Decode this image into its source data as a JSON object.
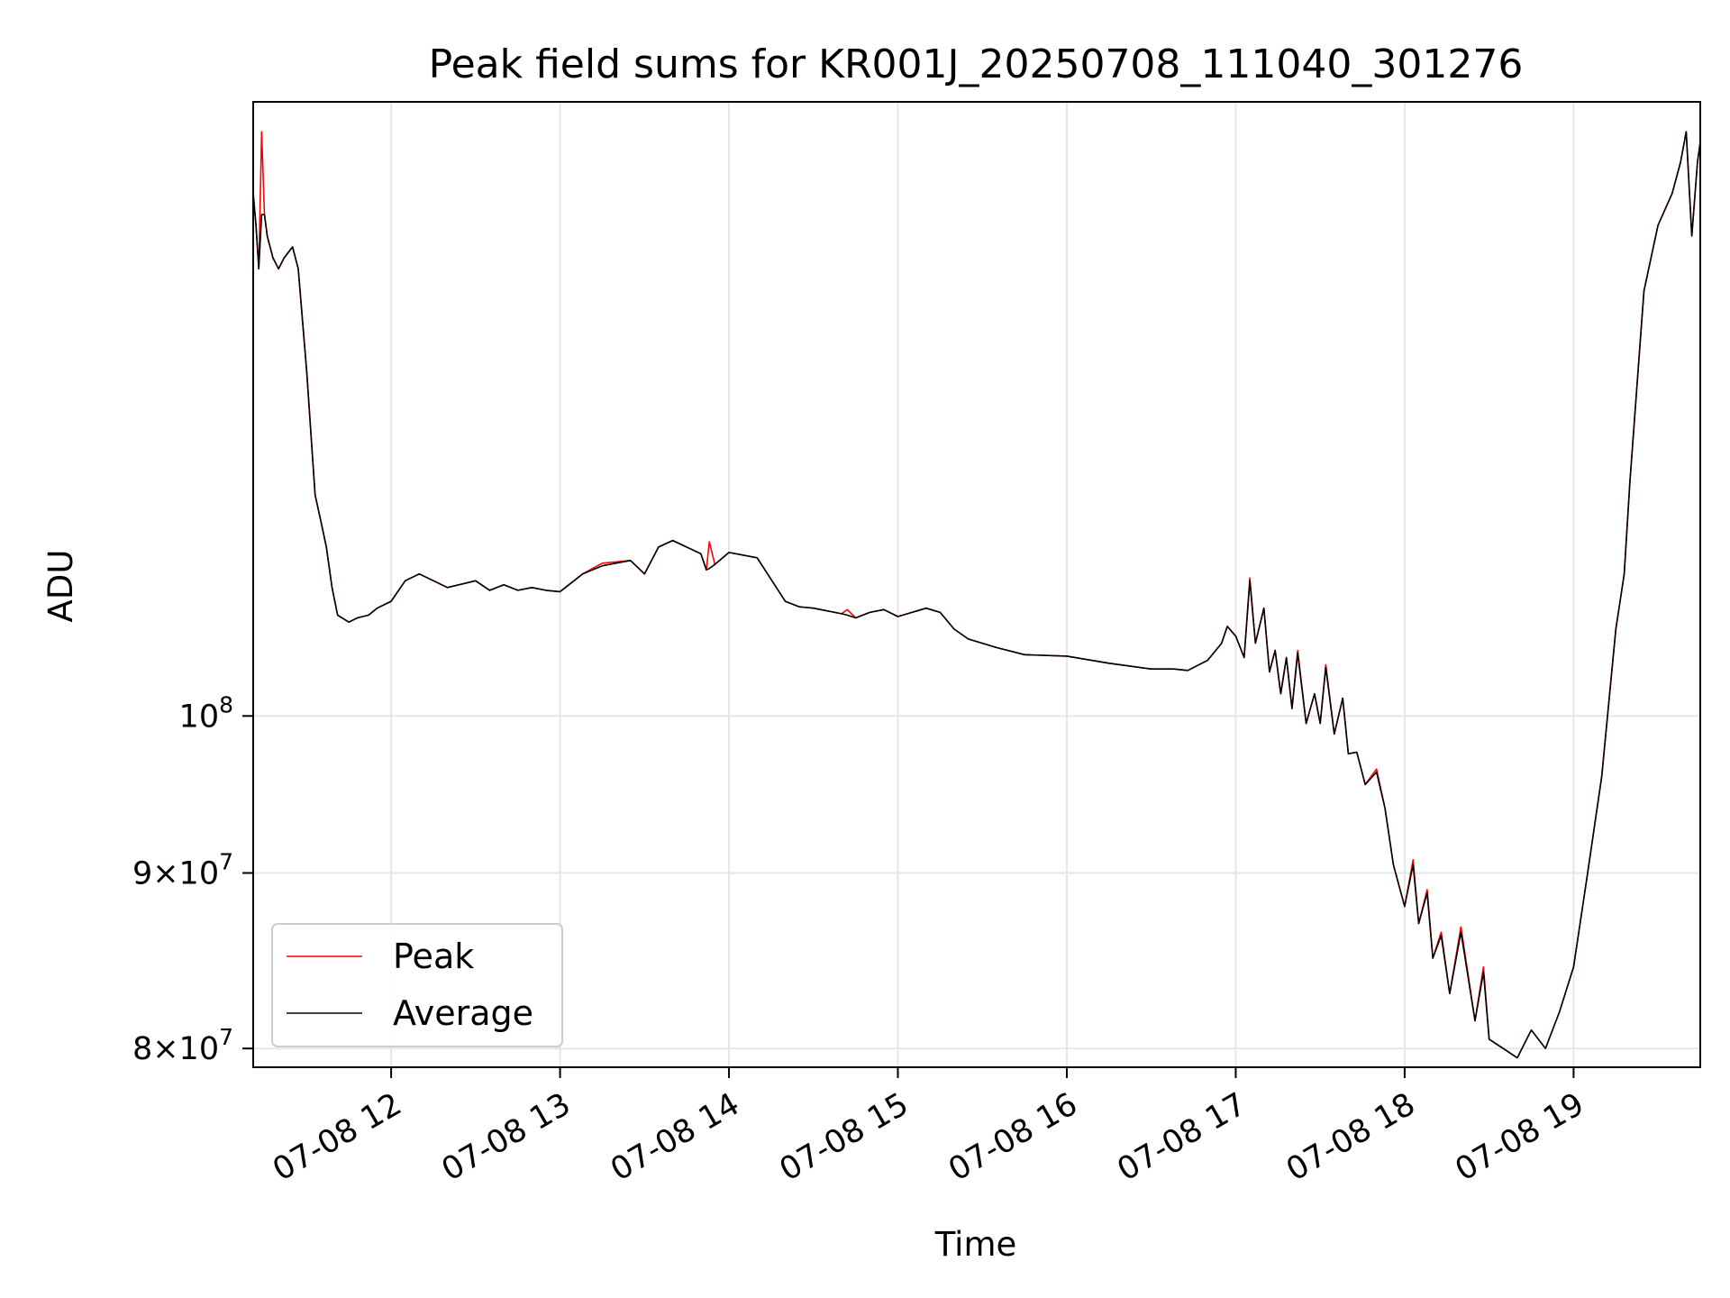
{
  "chart_data": {
    "type": "line",
    "title": "Peak field sums for KR001J_20250708_111040_301276",
    "xlabel": "Time",
    "ylabel": "ADU",
    "y_scale": "log",
    "grid": true,
    "legend_position": "lower-left",
    "xlim": [
      "07-08 11:11",
      "07-08 19:45"
    ],
    "ylim": [
      79000000,
      151000000
    ],
    "x_ticks": [
      "07-08 12",
      "07-08 13",
      "07-08 14",
      "07-08 15",
      "07-08 16",
      "07-08 17",
      "07-08 18",
      "07-08 19"
    ],
    "y_ticks": [
      {
        "value": 80000000,
        "mant": "8",
        "exp": "7"
      },
      {
        "value": 90000000,
        "mant": "9",
        "exp": "7"
      },
      {
        "value": 100000000,
        "mant": "",
        "exp": "8"
      }
    ],
    "series": [
      {
        "name": "Peak",
        "color": "#ff0000",
        "x": [
          "07-08 11:11",
          "07-08 11:12",
          "07-08 11:13",
          "07-08 11:14",
          "07-08 11:15",
          "07-08 11:16",
          "07-08 11:18",
          "07-08 11:20",
          "07-08 11:22",
          "07-08 11:25",
          "07-08 11:27",
          "07-08 11:30",
          "07-08 11:33",
          "07-08 11:35",
          "07-08 11:37",
          "07-08 11:39",
          "07-08 11:41",
          "07-08 11:45",
          "07-08 11:48",
          "07-08 11:52",
          "07-08 11:55",
          "07-08 12:00",
          "07-08 12:05",
          "07-08 12:10",
          "07-08 12:20",
          "07-08 12:30",
          "07-08 12:35",
          "07-08 12:40",
          "07-08 12:45",
          "07-08 12:50",
          "07-08 12:55",
          "07-08 13:00",
          "07-08 13:08",
          "07-08 13:15",
          "07-08 13:25",
          "07-08 13:30",
          "07-08 13:35",
          "07-08 13:40",
          "07-08 13:50",
          "07-08 13:52",
          "07-08 13:53",
          "07-08 13:55",
          "07-08 14:00",
          "07-08 14:10",
          "07-08 14:20",
          "07-08 14:25",
          "07-08 14:30",
          "07-08 14:40",
          "07-08 14:42",
          "07-08 14:45",
          "07-08 14:50",
          "07-08 14:55",
          "07-08 15:00",
          "07-08 15:05",
          "07-08 15:10",
          "07-08 15:15",
          "07-08 15:20",
          "07-08 15:25",
          "07-08 15:35",
          "07-08 15:45",
          "07-08 16:00",
          "07-08 16:15",
          "07-08 16:30",
          "07-08 16:38",
          "07-08 16:43",
          "07-08 16:50",
          "07-08 16:55",
          "07-08 16:57",
          "07-08 17:00",
          "07-08 17:03",
          "07-08 17:05",
          "07-08 17:07",
          "07-08 17:10",
          "07-08 17:12",
          "07-08 17:14",
          "07-08 17:16",
          "07-08 17:18",
          "07-08 17:20",
          "07-08 17:22",
          "07-08 17:25",
          "07-08 17:28",
          "07-08 17:30",
          "07-08 17:32",
          "07-08 17:35",
          "07-08 17:38",
          "07-08 17:40",
          "07-08 17:43",
          "07-08 17:46",
          "07-08 17:50",
          "07-08 17:53",
          "07-08 17:56",
          "07-08 18:00",
          "07-08 18:03",
          "07-08 18:05",
          "07-08 18:08",
          "07-08 18:10",
          "07-08 18:13",
          "07-08 18:16",
          "07-08 18:20",
          "07-08 18:25",
          "07-08 18:28",
          "07-08 18:30",
          "07-08 18:35",
          "07-08 18:40",
          "07-08 18:45",
          "07-08 18:50",
          "07-08 18:55",
          "07-08 19:00",
          "07-08 19:05",
          "07-08 19:10",
          "07-08 19:15",
          "07-08 19:18",
          "07-08 19:20",
          "07-08 19:25",
          "07-08 19:30",
          "07-08 19:35",
          "07-08 19:38",
          "07-08 19:40",
          "07-08 19:42",
          "07-08 19:44",
          "07-08 19:45"
        ],
        "values": [
          142000000,
          139000000,
          135000000,
          148000000,
          140000000,
          138000000,
          136000000,
          135000000,
          136000000,
          137000000,
          135000000,
          126000000,
          116000000,
          114000000,
          112000000,
          109000000,
          107000000,
          106500000,
          106800000,
          107000000,
          107500000,
          108000000,
          109500000,
          110000000,
          109000000,
          109500000,
          108800000,
          109200000,
          108800000,
          109000000,
          108800000,
          108700000,
          110000000,
          110800000,
          111000000,
          110000000,
          112000000,
          112500000,
          111500000,
          110300000,
          112400000,
          110700000,
          111600000,
          111200000,
          108000000,
          107600000,
          107500000,
          107100000,
          107400000,
          106800000,
          107200000,
          107400000,
          106900000,
          107200000,
          107500000,
          107200000,
          106000000,
          105300000,
          104700000,
          104200000,
          104100000,
          103600000,
          103200000,
          103200000,
          103100000,
          103800000,
          105000000,
          106200000,
          105500000,
          104000000,
          109700000,
          105000000,
          107500000,
          103000000,
          104500000,
          101500000,
          104000000,
          100500000,
          104500000,
          99500000,
          101500000,
          99500000,
          103500000,
          98800000,
          101200000,
          97500000,
          97600000,
          95500000,
          96500000,
          94000000,
          90500000,
          88000000,
          90800000,
          87000000,
          89000000,
          85000000,
          86500000,
          83000000,
          86800000,
          81500000,
          84500000,
          80500000,
          80000000,
          79500000,
          81000000,
          80000000,
          82000000,
          84500000,
          90000000,
          96000000,
          106000000,
          110000000,
          117000000,
          133000000,
          139000000,
          142000000,
          145000000,
          148000000,
          138000000,
          145000000,
          147000000
        ]
      },
      {
        "name": "Average",
        "color": "#000000",
        "x": [
          "07-08 11:11",
          "07-08 11:12",
          "07-08 11:13",
          "07-08 11:14",
          "07-08 11:15",
          "07-08 11:16",
          "07-08 11:18",
          "07-08 11:20",
          "07-08 11:22",
          "07-08 11:25",
          "07-08 11:27",
          "07-08 11:30",
          "07-08 11:33",
          "07-08 11:35",
          "07-08 11:37",
          "07-08 11:39",
          "07-08 11:41",
          "07-08 11:45",
          "07-08 11:48",
          "07-08 11:52",
          "07-08 11:55",
          "07-08 12:00",
          "07-08 12:05",
          "07-08 12:10",
          "07-08 12:20",
          "07-08 12:30",
          "07-08 12:35",
          "07-08 12:40",
          "07-08 12:45",
          "07-08 12:50",
          "07-08 12:55",
          "07-08 13:00",
          "07-08 13:08",
          "07-08 13:15",
          "07-08 13:25",
          "07-08 13:30",
          "07-08 13:35",
          "07-08 13:40",
          "07-08 13:50",
          "07-08 13:52",
          "07-08 13:53",
          "07-08 13:55",
          "07-08 14:00",
          "07-08 14:10",
          "07-08 14:20",
          "07-08 14:25",
          "07-08 14:30",
          "07-08 14:40",
          "07-08 14:42",
          "07-08 14:45",
          "07-08 14:50",
          "07-08 14:55",
          "07-08 15:00",
          "07-08 15:05",
          "07-08 15:10",
          "07-08 15:15",
          "07-08 15:20",
          "07-08 15:25",
          "07-08 15:35",
          "07-08 15:45",
          "07-08 16:00",
          "07-08 16:15",
          "07-08 16:30",
          "07-08 16:38",
          "07-08 16:43",
          "07-08 16:50",
          "07-08 16:55",
          "07-08 16:57",
          "07-08 17:00",
          "07-08 17:03",
          "07-08 17:05",
          "07-08 17:07",
          "07-08 17:10",
          "07-08 17:12",
          "07-08 17:14",
          "07-08 17:16",
          "07-08 17:18",
          "07-08 17:20",
          "07-08 17:22",
          "07-08 17:25",
          "07-08 17:28",
          "07-08 17:30",
          "07-08 17:32",
          "07-08 17:35",
          "07-08 17:38",
          "07-08 17:40",
          "07-08 17:43",
          "07-08 17:46",
          "07-08 17:50",
          "07-08 17:53",
          "07-08 17:56",
          "07-08 18:00",
          "07-08 18:03",
          "07-08 18:05",
          "07-08 18:08",
          "07-08 18:10",
          "07-08 18:13",
          "07-08 18:16",
          "07-08 18:20",
          "07-08 18:25",
          "07-08 18:28",
          "07-08 18:30",
          "07-08 18:35",
          "07-08 18:40",
          "07-08 18:45",
          "07-08 18:50",
          "07-08 18:55",
          "07-08 19:00",
          "07-08 19:05",
          "07-08 19:10",
          "07-08 19:15",
          "07-08 19:18",
          "07-08 19:20",
          "07-08 19:25",
          "07-08 19:30",
          "07-08 19:35",
          "07-08 19:38",
          "07-08 19:40",
          "07-08 19:42",
          "07-08 19:44",
          "07-08 19:45"
        ],
        "values": [
          142000000,
          139000000,
          135000000,
          140000000,
          140000000,
          138000000,
          136000000,
          135000000,
          136000000,
          137000000,
          135000000,
          126000000,
          116000000,
          114000000,
          112000000,
          109000000,
          107000000,
          106500000,
          106800000,
          107000000,
          107500000,
          108000000,
          109500000,
          110000000,
          109000000,
          109500000,
          108800000,
          109200000,
          108800000,
          109000000,
          108800000,
          108700000,
          110000000,
          110600000,
          111000000,
          110000000,
          112000000,
          112500000,
          111500000,
          110300000,
          110400000,
          110700000,
          111600000,
          111200000,
          108000000,
          107600000,
          107500000,
          107100000,
          107000000,
          106800000,
          107200000,
          107400000,
          106900000,
          107200000,
          107500000,
          107200000,
          106000000,
          105300000,
          104700000,
          104200000,
          104100000,
          103600000,
          103200000,
          103200000,
          103100000,
          103800000,
          105000000,
          106200000,
          105500000,
          104000000,
          109500000,
          105000000,
          107500000,
          103000000,
          104500000,
          101500000,
          104000000,
          100500000,
          104300000,
          99500000,
          101500000,
          99500000,
          103300000,
          98800000,
          101200000,
          97500000,
          97600000,
          95500000,
          96300000,
          94000000,
          90500000,
          88000000,
          90500000,
          87000000,
          88800000,
          85000000,
          86300000,
          83000000,
          86500000,
          81500000,
          84200000,
          80500000,
          80000000,
          79500000,
          81000000,
          80000000,
          82000000,
          84500000,
          90000000,
          96000000,
          106000000,
          110000000,
          117000000,
          133000000,
          139000000,
          142000000,
          145000000,
          148000000,
          138000000,
          145000000,
          147000000
        ]
      }
    ]
  }
}
